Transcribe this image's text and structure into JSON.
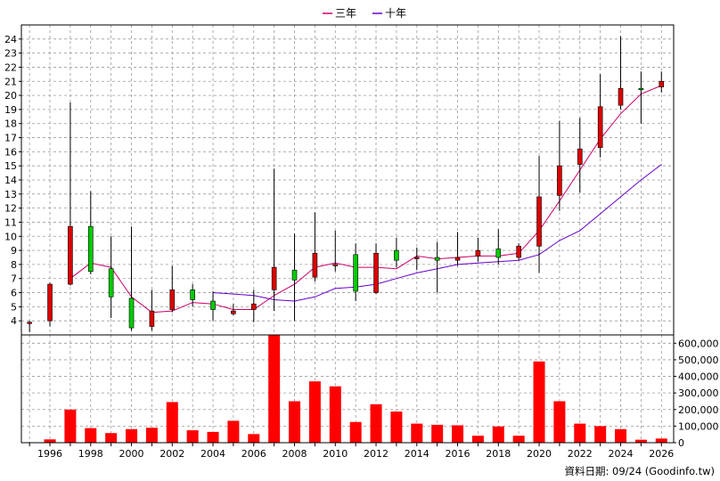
{
  "chart_data": {
    "type": "candlestick+bar",
    "legend": {
      "placement": "top-center",
      "entries": [
        {
          "name": "三年",
          "color": "#cc0066"
        },
        {
          "name": "十年",
          "color": "#6600cc"
        }
      ]
    },
    "price_panel": {
      "ylim": [
        3,
        25
      ],
      "yticks": [
        4,
        5,
        6,
        7,
        8,
        9,
        10,
        11,
        12,
        13,
        14,
        15,
        16,
        17,
        18,
        19,
        20,
        21,
        22,
        23,
        24
      ],
      "grid": true,
      "candles": [
        {
          "year": 1995,
          "open": 3.85,
          "close": 3.9,
          "high": 4.0,
          "low": 3.2
        },
        {
          "year": 1996,
          "open": 4.0,
          "close": 6.6,
          "high": 6.7,
          "low": 3.6
        },
        {
          "year": 1997,
          "open": 6.6,
          "close": 10.7,
          "high": 19.5,
          "low": 6.5
        },
        {
          "year": 1998,
          "open": 10.7,
          "close": 7.5,
          "high": 13.2,
          "low": 7.3
        },
        {
          "year": 1999,
          "open": 7.7,
          "close": 5.7,
          "high": 10.0,
          "low": 4.2
        },
        {
          "year": 2000,
          "open": 5.6,
          "close": 3.5,
          "high": 10.7,
          "low": 3.3
        },
        {
          "year": 2001,
          "open": 3.6,
          "close": 4.7,
          "high": 6.2,
          "low": 3.3
        },
        {
          "year": 2002,
          "open": 4.8,
          "close": 6.2,
          "high": 7.9,
          "low": 4.6
        },
        {
          "year": 2003,
          "open": 6.2,
          "close": 5.5,
          "high": 6.6,
          "low": 5.0
        },
        {
          "year": 2004,
          "open": 5.4,
          "close": 4.8,
          "high": 6.1,
          "low": 4.0
        },
        {
          "year": 2005,
          "open": 4.5,
          "close": 4.7,
          "high": 5.2,
          "low": 4.4
        },
        {
          "year": 2006,
          "open": 4.8,
          "close": 5.2,
          "high": 6.2,
          "low": 3.9
        },
        {
          "year": 2007,
          "open": 6.2,
          "close": 7.8,
          "high": 14.8,
          "low": 4.7
        },
        {
          "year": 2008,
          "open": 7.6,
          "close": 6.9,
          "high": 10.2,
          "low": 4.0
        },
        {
          "year": 2009,
          "open": 7.1,
          "close": 8.8,
          "high": 11.7,
          "low": 6.8
        },
        {
          "year": 2010,
          "open": 8.0,
          "close": 8.0,
          "high": 10.4,
          "low": 7.5
        },
        {
          "year": 2011,
          "open": 8.7,
          "close": 6.1,
          "high": 9.5,
          "low": 5.4
        },
        {
          "year": 2012,
          "open": 6.0,
          "close": 8.8,
          "high": 9.5,
          "low": 5.9
        },
        {
          "year": 2013,
          "open": 9.0,
          "close": 8.3,
          "high": 9.9,
          "low": 7.8
        },
        {
          "year": 2014,
          "open": 8.5,
          "close": 8.5,
          "high": 9.2,
          "low": 7.6
        },
        {
          "year": 2015,
          "open": 8.5,
          "close": 8.3,
          "high": 9.6,
          "low": 6.0
        },
        {
          "year": 2016,
          "open": 8.3,
          "close": 8.5,
          "high": 10.3,
          "low": 7.9
        },
        {
          "year": 2017,
          "open": 8.6,
          "close": 9.0,
          "high": 9.9,
          "low": 8.2
        },
        {
          "year": 2018,
          "open": 9.1,
          "close": 8.5,
          "high": 10.5,
          "low": 8.0
        },
        {
          "year": 2019,
          "open": 8.5,
          "close": 9.3,
          "high": 9.5,
          "low": 8.3
        },
        {
          "year": 2020,
          "open": 9.3,
          "close": 12.8,
          "high": 15.7,
          "low": 7.4
        },
        {
          "year": 2021,
          "open": 12.9,
          "close": 15.0,
          "high": 18.2,
          "low": 11.8
        },
        {
          "year": 2022,
          "open": 15.1,
          "close": 16.2,
          "high": 18.4,
          "low": 13.1
        },
        {
          "year": 2023,
          "open": 16.3,
          "close": 19.2,
          "high": 21.5,
          "low": 15.6
        },
        {
          "year": 2024,
          "open": 19.3,
          "close": 20.5,
          "high": 24.2,
          "low": 19.0
        },
        {
          "year": 2025,
          "open": 20.5,
          "close": 20.4,
          "high": 21.7,
          "low": 18.0
        },
        {
          "year": 2026,
          "open": 20.6,
          "close": 21.0,
          "high": 21.7,
          "low": 20.2
        }
      ],
      "lines": [
        {
          "name": "三年",
          "color": "#cc0066",
          "points": [
            [
              1997,
              7.0
            ],
            [
              1998,
              8.1
            ],
            [
              1999,
              7.8
            ],
            [
              2000,
              5.7
            ],
            [
              2001,
              4.6
            ],
            [
              2002,
              4.7
            ],
            [
              2003,
              5.3
            ],
            [
              2004,
              5.2
            ],
            [
              2005,
              4.8
            ],
            [
              2006,
              4.8
            ],
            [
              2007,
              5.8
            ],
            [
              2008,
              6.6
            ],
            [
              2009,
              7.8
            ],
            [
              2010,
              8.1
            ],
            [
              2011,
              7.8
            ],
            [
              2012,
              7.8
            ],
            [
              2013,
              7.7
            ],
            [
              2014,
              8.6
            ],
            [
              2015,
              8.4
            ],
            [
              2016,
              8.5
            ],
            [
              2017,
              8.6
            ],
            [
              2018,
              8.6
            ],
            [
              2019,
              8.8
            ],
            [
              2020,
              10.4
            ],
            [
              2021,
              12.5
            ],
            [
              2022,
              14.7
            ],
            [
              2023,
              16.9
            ],
            [
              2024,
              18.7
            ],
            [
              2025,
              20.1
            ],
            [
              2026,
              20.7
            ]
          ]
        },
        {
          "name": "十年",
          "color": "#6600cc",
          "points": [
            [
              2004,
              6.0
            ],
            [
              2005,
              5.9
            ],
            [
              2006,
              5.8
            ],
            [
              2007,
              5.5
            ],
            [
              2008,
              5.4
            ],
            [
              2009,
              5.7
            ],
            [
              2010,
              6.3
            ],
            [
              2011,
              6.4
            ],
            [
              2012,
              6.6
            ],
            [
              2013,
              7.0
            ],
            [
              2014,
              7.4
            ],
            [
              2015,
              7.7
            ],
            [
              2016,
              8.0
            ],
            [
              2017,
              8.1
            ],
            [
              2018,
              8.2
            ],
            [
              2019,
              8.3
            ],
            [
              2020,
              8.7
            ],
            [
              2021,
              9.7
            ],
            [
              2022,
              10.4
            ],
            [
              2023,
              11.6
            ],
            [
              2024,
              12.8
            ],
            [
              2025,
              14.0
            ],
            [
              2026,
              15.1
            ]
          ]
        }
      ]
    },
    "volume_panel": {
      "ylim": [
        0,
        650000
      ],
      "yticks": [
        0,
        100000,
        200000,
        300000,
        400000,
        500000,
        600000
      ],
      "ytick_labels": [
        "0",
        "100,000",
        "200,000",
        "300,000",
        "400,000",
        "500,000",
        "600,000"
      ],
      "color": "#ff0000",
      "bars": [
        {
          "year": 1995,
          "value": 0
        },
        {
          "year": 1996,
          "value": 20000
        },
        {
          "year": 1997,
          "value": 200000
        },
        {
          "year": 1998,
          "value": 88000
        },
        {
          "year": 1999,
          "value": 58000
        },
        {
          "year": 2000,
          "value": 82000
        },
        {
          "year": 2001,
          "value": 90000
        },
        {
          "year": 2002,
          "value": 245000
        },
        {
          "year": 2003,
          "value": 75000
        },
        {
          "year": 2004,
          "value": 65000
        },
        {
          "year": 2005,
          "value": 132000
        },
        {
          "year": 2006,
          "value": 52000
        },
        {
          "year": 2007,
          "value": 655000
        },
        {
          "year": 2008,
          "value": 250000
        },
        {
          "year": 2009,
          "value": 370000
        },
        {
          "year": 2010,
          "value": 340000
        },
        {
          "year": 2011,
          "value": 125000
        },
        {
          "year": 2012,
          "value": 232000
        },
        {
          "year": 2013,
          "value": 188000
        },
        {
          "year": 2014,
          "value": 115000
        },
        {
          "year": 2015,
          "value": 108000
        },
        {
          "year": 2016,
          "value": 105000
        },
        {
          "year": 2017,
          "value": 42000
        },
        {
          "year": 2018,
          "value": 98000
        },
        {
          "year": 2019,
          "value": 42000
        },
        {
          "year": 2020,
          "value": 490000
        },
        {
          "year": 2021,
          "value": 250000
        },
        {
          "year": 2022,
          "value": 115000
        },
        {
          "year": 2023,
          "value": 100000
        },
        {
          "year": 2024,
          "value": 82000
        },
        {
          "year": 2025,
          "value": 18000
        },
        {
          "year": 2026,
          "value": 25000
        }
      ]
    },
    "x_axis": {
      "xlim": [
        1994.6,
        2026.6
      ],
      "tick_labels": [
        "1996",
        "1998",
        "2000",
        "2002",
        "2004",
        "2006",
        "2008",
        "2010",
        "2012",
        "2014",
        "2016",
        "2018",
        "2020",
        "2022",
        "2024",
        "2026"
      ]
    },
    "footer_text": "資料日期: 09/24 (Goodinfo.tw)",
    "colors": {
      "up": "#dd0000",
      "down": "#00cc00",
      "wick": "#000000",
      "grid": "#999999"
    }
  }
}
